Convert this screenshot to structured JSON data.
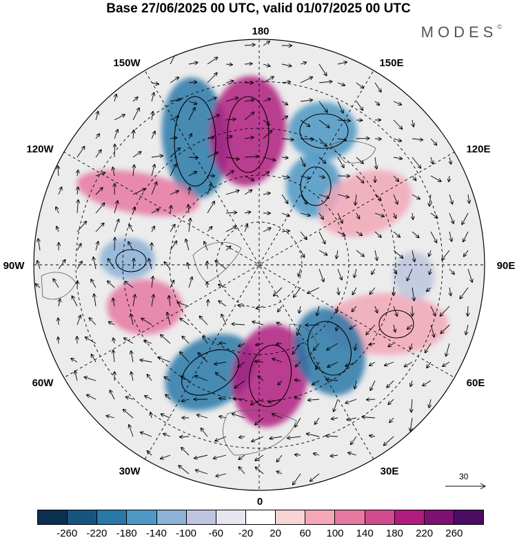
{
  "title": "Base 27/06/2025 00 UTC, valid 01/07/2025 00 UTC",
  "brand": {
    "name": "MODES",
    "mark": "©"
  },
  "longitude_labels": {
    "top": "180",
    "top_left": "150W",
    "top_right": "150E",
    "upper_left": "120W",
    "upper_right": "120E",
    "left": "90W",
    "right": "90E",
    "lower_left": "60W",
    "lower_right": "60E",
    "bottom_left": "30W",
    "bottom_right": "30E",
    "bottom": "0"
  },
  "vector_scale": {
    "value": "30"
  },
  "colorbar": {
    "colors": [
      "#0b2f4f",
      "#17557f",
      "#2878a8",
      "#4e98c4",
      "#8cb2d6",
      "#bec5de",
      "#e6e6f0",
      "#ffffff",
      "#f8d4d4",
      "#f2a8b8",
      "#e678a2",
      "#d24a8e",
      "#b01c80",
      "#7e1071",
      "#4b0c63"
    ],
    "ticks": [
      "-260",
      "-220",
      "-180",
      "-140",
      "-100",
      "-60",
      "-20",
      "20",
      "60",
      "100",
      "140",
      "180",
      "220",
      "260"
    ]
  },
  "anomaly_centers": [
    {
      "kind": "negative",
      "level": -180
    },
    {
      "kind": "positive",
      "level": 220
    },
    {
      "kind": "negative",
      "level": -140
    },
    {
      "kind": "negative",
      "level": -140
    },
    {
      "kind": "positive",
      "level": 100
    },
    {
      "kind": "negative",
      "level": -100
    },
    {
      "kind": "positive",
      "level": 140
    },
    {
      "kind": "positive",
      "level": 100
    },
    {
      "kind": "negative",
      "level": -180
    },
    {
      "kind": "positive",
      "level": 220
    },
    {
      "kind": "negative",
      "level": -180
    },
    {
      "kind": "positive",
      "level": 140
    },
    {
      "kind": "negative",
      "level": -60
    }
  ]
}
